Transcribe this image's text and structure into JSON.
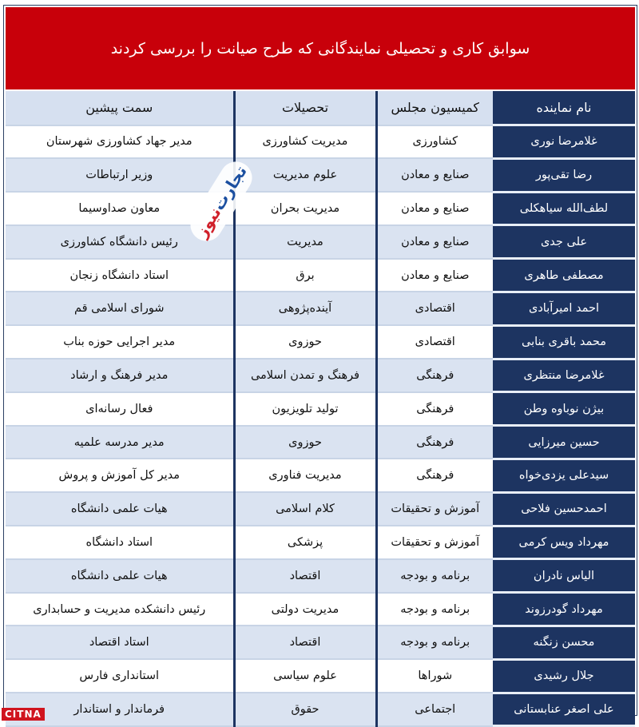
{
  "title": "سوابق کاری و تحصیلی نمایندگانی که طرح صیانت را بررسی کردند",
  "columns": {
    "name": "نام نماینده",
    "commission": "کمیسیون مجلس",
    "education": "تحصیلات",
    "position": "سمت پیشین"
  },
  "rows": [
    {
      "name": "غلامرضا نوری",
      "commission": "کشاورزی",
      "education": "مدیریت کشاورزی",
      "position": "مدیر جهاد کشاورزی شهرستان"
    },
    {
      "name": "رضا تقی‌پور",
      "commission": "صنایع و معادن",
      "education": "علوم مدیریت",
      "position": "وزیر ارتباطات"
    },
    {
      "name": "لطف‌الله سیاهکلی",
      "commission": "صنایع و معادن",
      "education": "مدیریت بحران",
      "position": "معاون صداوسیما"
    },
    {
      "name": "علی جدی",
      "commission": "صنایع و معادن",
      "education": "مدیریت",
      "position": "رئیس دانشگاه کشاورزی"
    },
    {
      "name": "مصطفی طاهری",
      "commission": "صنایع و معادن",
      "education": "برق",
      "position": "استاد دانشگاه زنجان"
    },
    {
      "name": "احمد امیرآبادی",
      "commission": "اقتصادی",
      "education": "آینده‌پژوهی",
      "position": "شورای اسلامی قم"
    },
    {
      "name": "محمد باقری بنابی",
      "commission": "اقتصادی",
      "education": "حوزوی",
      "position": "مدیر اجرایی حوزه بناب"
    },
    {
      "name": "غلامرضا منتظری",
      "commission": "فرهنگی",
      "education": "فرهنگ و تمدن اسلامی",
      "position": "مدیر فرهنگ و ارشاد"
    },
    {
      "name": "بیژن نوباوه وطن",
      "commission": "فرهنگی",
      "education": "تولید تلویزیون",
      "position": "فعال رسانه‌ای"
    },
    {
      "name": "حسین میرزایی",
      "commission": "فرهنگی",
      "education": "حوزوی",
      "position": "مدیر مدرسه علمیه"
    },
    {
      "name": "سیدعلی یزدی‌خواه",
      "commission": "فرهنگی",
      "education": "مدیریت فناوری",
      "position": "مدیر کل آموزش و پروش"
    },
    {
      "name": "احمدحسین فلاحی",
      "commission": "آموزش و تحقیقات",
      "education": "کلام اسلامی",
      "position": "هیات علمی دانشگاه"
    },
    {
      "name": "مهرداد ویس کرمی",
      "commission": "آموزش و تحقیقات",
      "education": "پزشکی",
      "position": "استاد دانشگاه"
    },
    {
      "name": "الیاس نادران",
      "commission": "برنامه و بودجه",
      "education": "اقتصاد",
      "position": "هیات علمی دانشگاه"
    },
    {
      "name": "مهرداد گودرزوند",
      "commission": "برنامه و بودجه",
      "education": "مدیریت دولتی",
      "position": "رئیس دانشکده مدیریت و حسابداری"
    },
    {
      "name": "محسن زنگنه",
      "commission": "برنامه و بودجه",
      "education": "اقتصاد",
      "position": "استاد اقتصاد"
    },
    {
      "name": "جلال رشیدی",
      "commission": "شوراها",
      "education": "علوم سیاسی",
      "position": "استانداری فارس"
    },
    {
      "name": "علی اصغر عنابستانی",
      "commission": "اجتماعی",
      "education": "حقوق",
      "position": "فرماندار و استاندار"
    }
  ],
  "watermark": {
    "part1": "تجارت",
    "part2": "نیوز",
    "url": "www.tejaratnews.com"
  },
  "logo": "CITNA",
  "colors": {
    "title_bg": "#c8000a",
    "name_bg": "#1d3461",
    "alt_row": "#dae3f1"
  }
}
